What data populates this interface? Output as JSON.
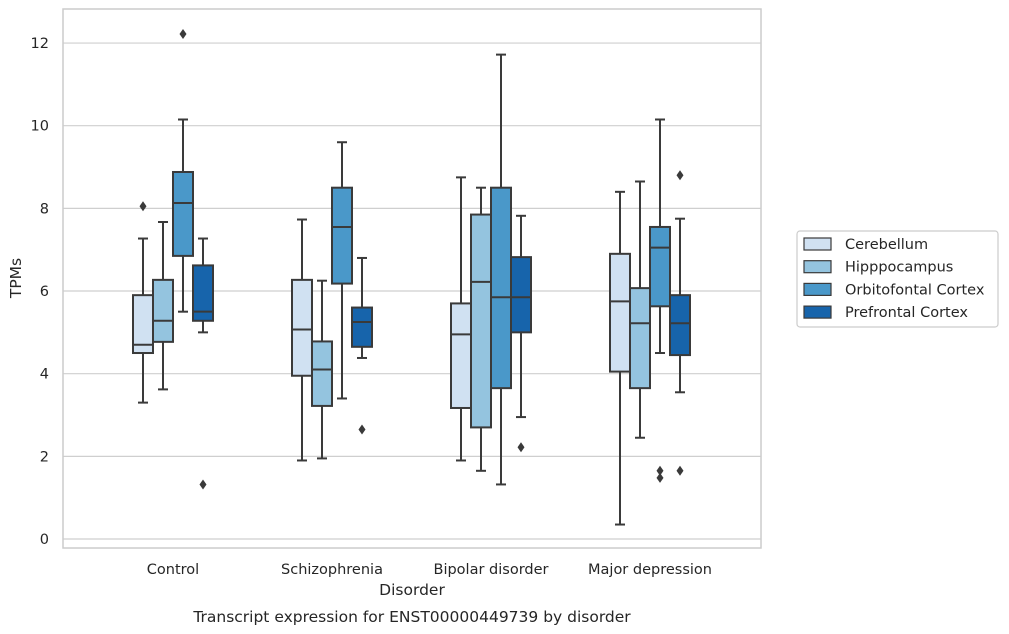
{
  "caption": "Transcript expression for ENST00000449739 by disorder",
  "colors": {
    "Cerebellum": "#d0e1f2",
    "Hipppocampus": "#94c4df",
    "Orbitofontal Cortex": "#4a98c9",
    "Prefrontal Cortex": "#1764ab",
    "line": "#3a3a3a",
    "grid": "#cfcfcf",
    "frame": "#cccccc"
  },
  "chart_data": {
    "type": "box",
    "xlabel": "Disorder",
    "ylabel": "TPMs",
    "ylim": [
      -0.2,
      12.8
    ],
    "yticks": [
      0,
      2,
      4,
      6,
      8,
      10,
      12
    ],
    "grid": "horizontal",
    "legend_position": "right",
    "categories": [
      "Control",
      "Schizophrenia",
      "Bipolar disorder",
      "Major depression"
    ],
    "series": [
      {
        "name": "Cerebellum",
        "boxes": [
          {
            "min": 3.3,
            "q1": 4.5,
            "median": 4.7,
            "q3": 5.9,
            "max": 7.27,
            "outliers": [
              8.05
            ]
          },
          {
            "min": 1.9,
            "q1": 3.95,
            "median": 5.07,
            "q3": 6.27,
            "max": 7.73,
            "outliers": []
          },
          {
            "min": 1.9,
            "q1": 3.17,
            "median": 4.95,
            "q3": 5.7,
            "max": 8.75,
            "outliers": []
          },
          {
            "min": 0.35,
            "q1": 4.05,
            "median": 5.75,
            "q3": 6.9,
            "max": 8.4,
            "outliers": []
          }
        ]
      },
      {
        "name": "Hipppocampus",
        "boxes": [
          {
            "min": 3.62,
            "q1": 4.77,
            "median": 5.28,
            "q3": 6.27,
            "max": 7.67,
            "outliers": []
          },
          {
            "min": 1.95,
            "q1": 3.22,
            "median": 4.1,
            "q3": 4.78,
            "max": 6.25,
            "outliers": []
          },
          {
            "min": 1.65,
            "q1": 2.7,
            "median": 6.22,
            "q3": 7.85,
            "max": 8.5,
            "outliers": []
          },
          {
            "min": 2.45,
            "q1": 3.65,
            "median": 5.22,
            "q3": 6.07,
            "max": 8.65,
            "outliers": []
          }
        ]
      },
      {
        "name": "Orbitofontal Cortex",
        "boxes": [
          {
            "min": 5.5,
            "q1": 6.85,
            "median": 8.13,
            "q3": 8.88,
            "max": 10.15,
            "outliers": [
              12.22
            ]
          },
          {
            "min": 3.4,
            "q1": 6.18,
            "median": 7.55,
            "q3": 8.5,
            "max": 9.6,
            "outliers": []
          },
          {
            "min": 1.32,
            "q1": 3.65,
            "median": 5.85,
            "q3": 8.5,
            "max": 11.72,
            "outliers": []
          },
          {
            "min": 4.5,
            "q1": 5.63,
            "median": 7.05,
            "q3": 7.55,
            "max": 10.15,
            "outliers": [
              1.65,
              1.48
            ]
          }
        ]
      },
      {
        "name": "Prefrontal Cortex",
        "boxes": [
          {
            "min": 5.0,
            "q1": 5.28,
            "median": 5.5,
            "q3": 6.62,
            "max": 7.27,
            "outliers": [
              1.32
            ]
          },
          {
            "min": 4.38,
            "q1": 4.65,
            "median": 5.25,
            "q3": 5.6,
            "max": 6.8,
            "outliers": [
              2.65
            ]
          },
          {
            "min": 2.95,
            "q1": 5.0,
            "median": 5.85,
            "q3": 6.82,
            "max": 7.82,
            "outliers": [
              2.22
            ]
          },
          {
            "min": 3.55,
            "q1": 4.45,
            "median": 5.22,
            "q3": 5.9,
            "max": 7.75,
            "outliers": [
              8.8,
              1.65
            ]
          }
        ]
      }
    ]
  }
}
